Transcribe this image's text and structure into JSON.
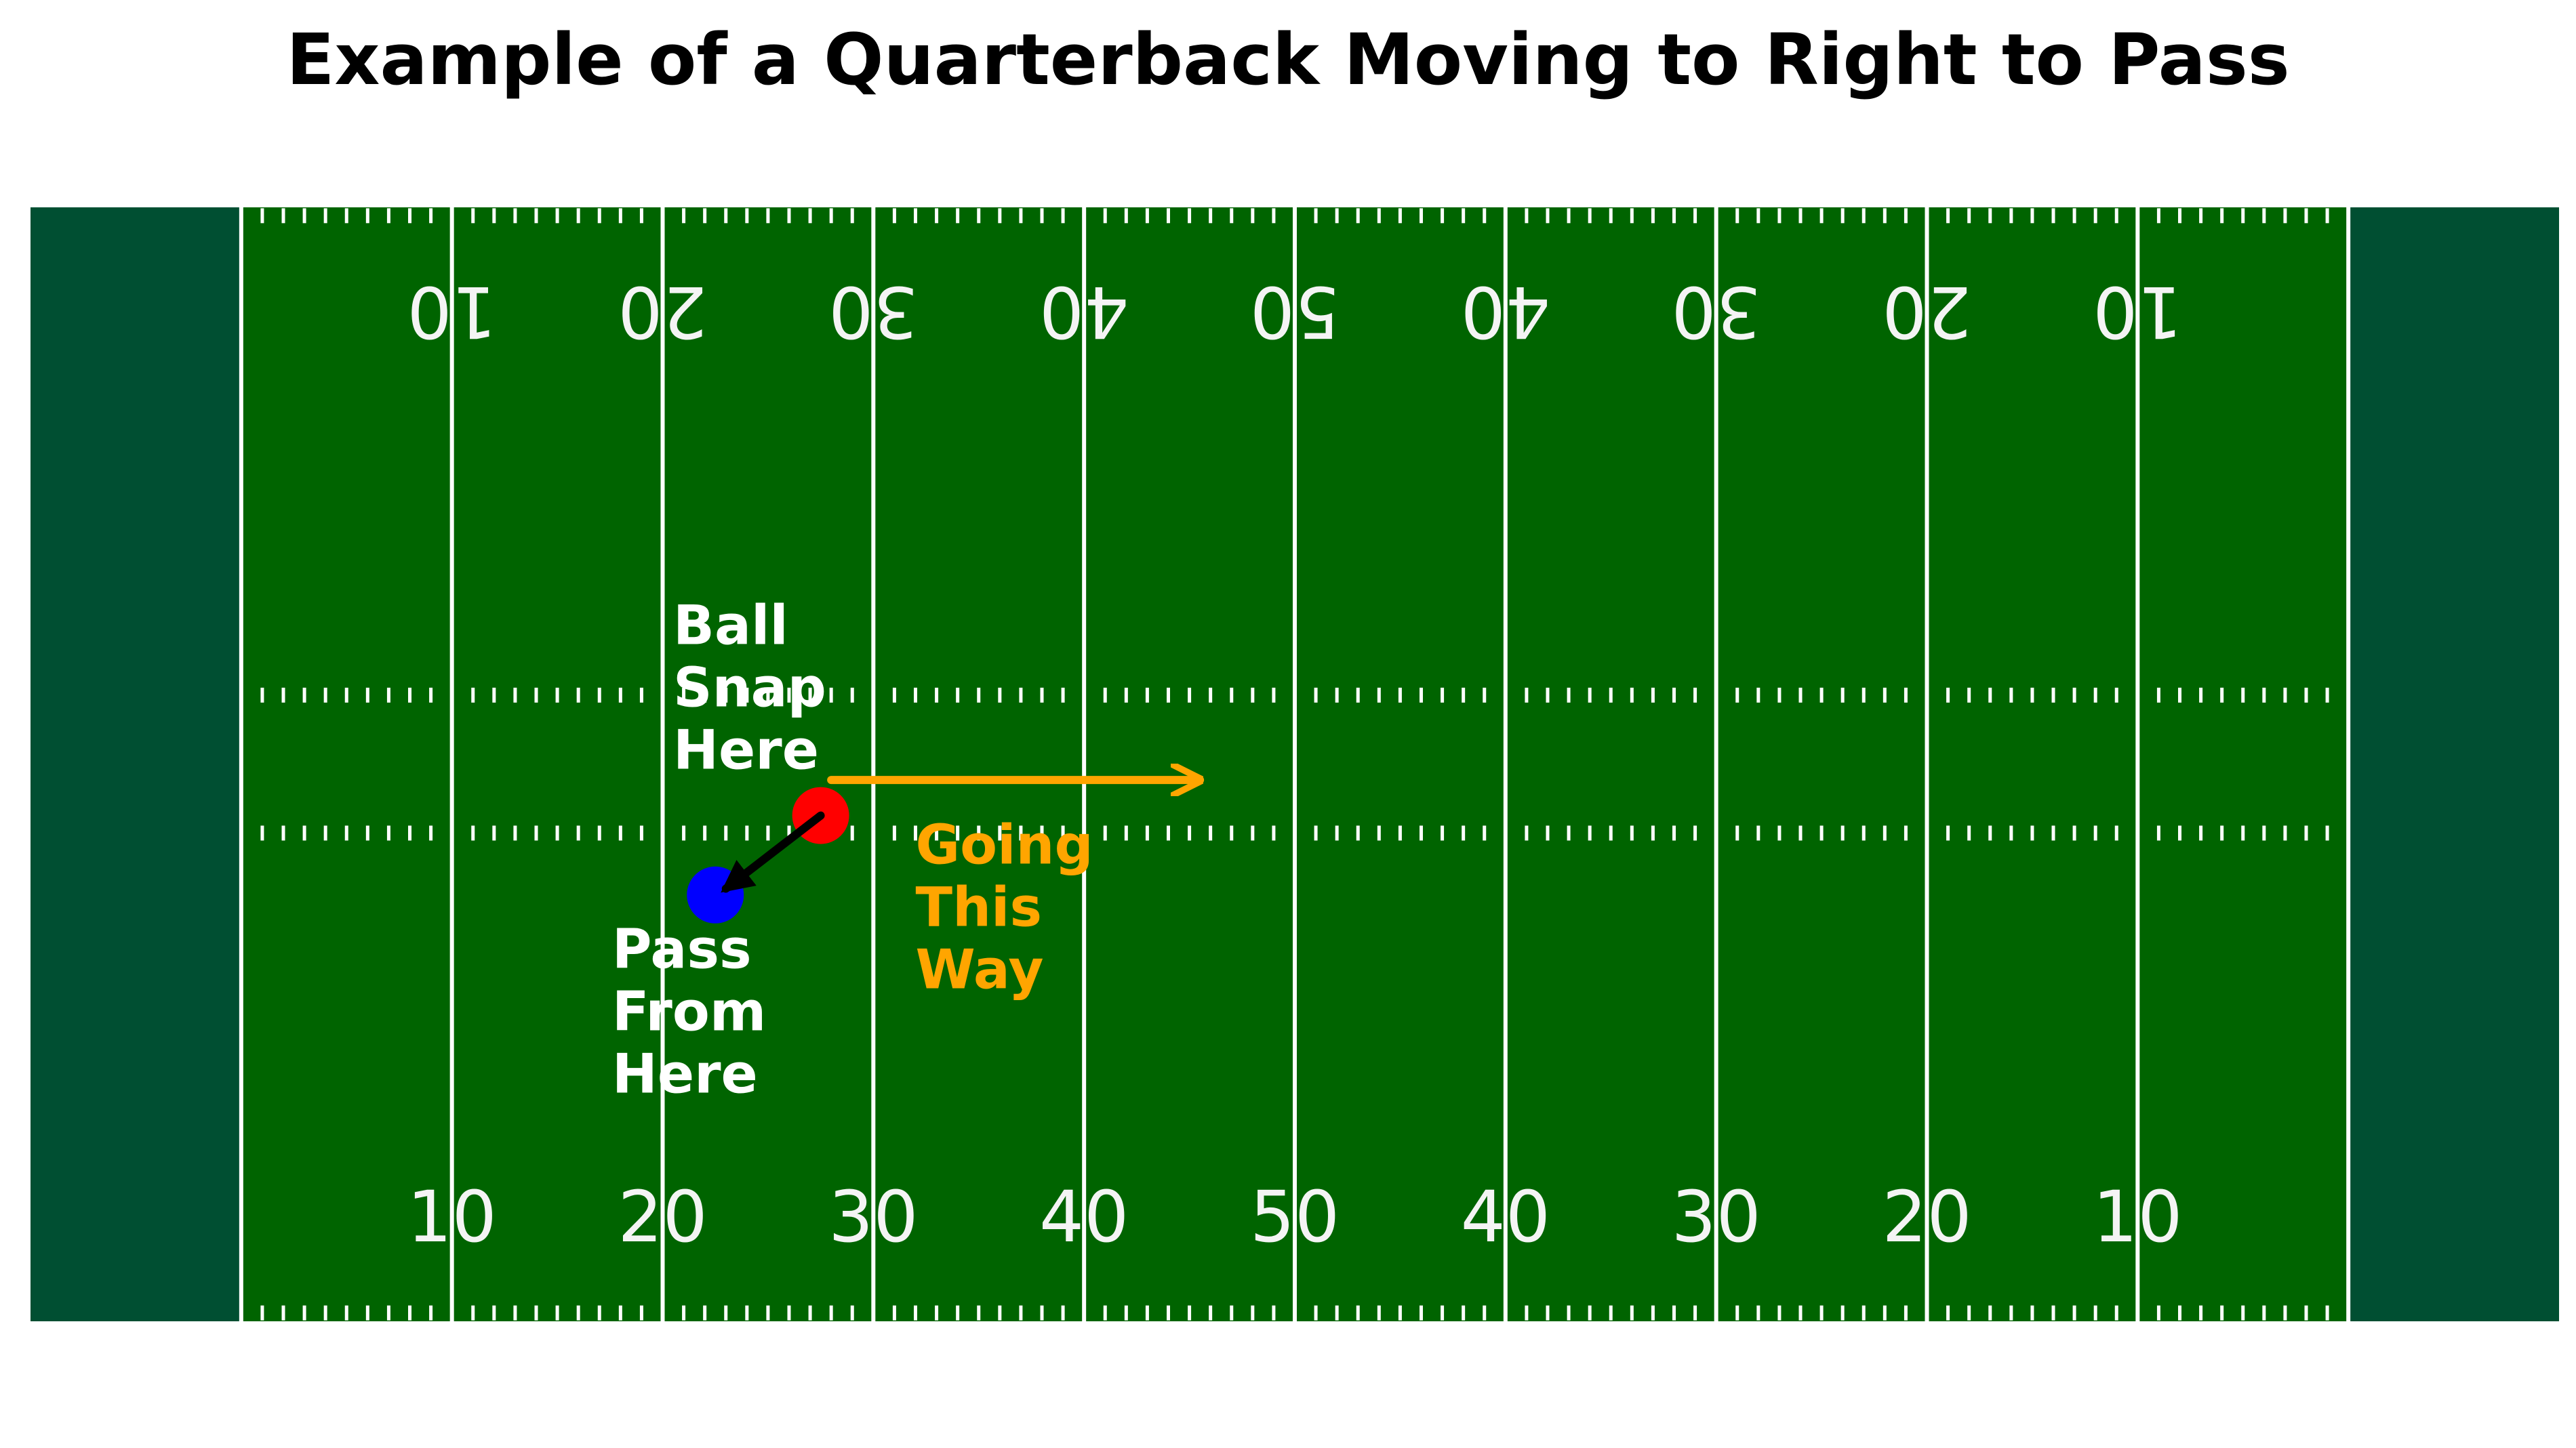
{
  "chart_data": {
    "type": "scatter",
    "title": "Example of a Quarterback Moving to Right to Pass",
    "xlabel": "",
    "ylabel": "",
    "xlim": [
      -10,
      110
    ],
    "ylim": [
      0,
      53.3
    ],
    "grid": false,
    "colors": {
      "endzone": "#004f32",
      "field": "#006400",
      "lines": "#ffffff",
      "numbers": "#f4f4f4",
      "snap": "#ff0000",
      "pass": "#0000ff",
      "direction": "#ffa500",
      "qb_path": "#000000"
    },
    "yard_lines": [
      0,
      10,
      20,
      30,
      40,
      50,
      60,
      70,
      80,
      90,
      100
    ],
    "field_number_positions": [
      10,
      20,
      30,
      40,
      50,
      60,
      70,
      80,
      90
    ],
    "field_numbers": [
      "10",
      "20",
      "30",
      "40",
      "50",
      "40",
      "30",
      "20",
      "10"
    ],
    "bottom_numbers_y": 5,
    "top_numbers_y": 48.3,
    "hash_rows_y": [
      0.4,
      23.36,
      29.96,
      52.9
    ],
    "points": [
      {
        "id": "snap",
        "x": 27.5,
        "y": 24.2,
        "color": "#ff0000"
      },
      {
        "id": "pass",
        "x": 22.5,
        "y": 20.4,
        "color": "#0000ff"
      }
    ],
    "annotations": {
      "snap_label": [
        "Ball",
        "Snap",
        "Here"
      ],
      "pass_label": [
        "Pass",
        "From",
        "Here"
      ],
      "direction_label": [
        "Going",
        "This",
        "Way"
      ]
    },
    "snap_label_pos": {
      "x": 20.5,
      "y": 32.4
    },
    "pass_label_pos": {
      "x": 17.6,
      "y": 16.9
    },
    "direction_label_pos": {
      "x": 32.0,
      "y": 21.9
    },
    "qb_path": {
      "from": [
        27.5,
        24.2
      ],
      "to": [
        23.0,
        20.7
      ]
    },
    "direction_arrow": {
      "from": [
        28.0,
        25.9
      ],
      "to": [
        45.5,
        25.9
      ]
    }
  }
}
